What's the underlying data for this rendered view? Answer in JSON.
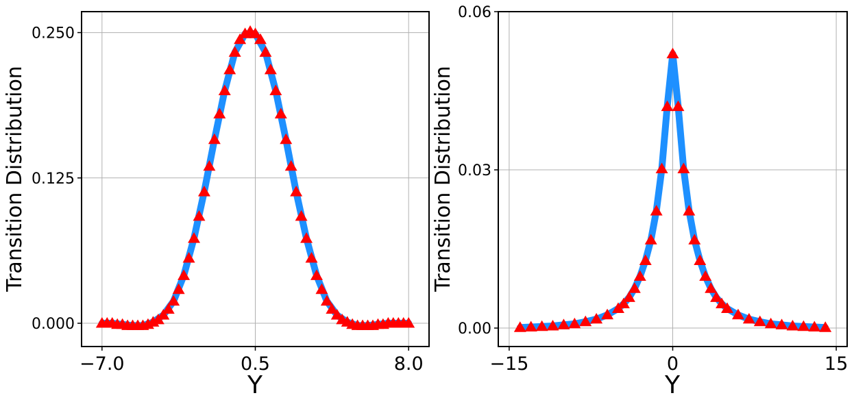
{
  "colors": {
    "curve": "#1E90FF",
    "markers": "#FF0000",
    "grid": "#b0b0b0",
    "axes": "#000000"
  },
  "chart_data": [
    {
      "type": "line",
      "xlabel": "Y",
      "ylabel": "Transition Distribution",
      "xlim": [
        -8.0,
        9.0
      ],
      "ylim": [
        -0.02,
        0.268
      ],
      "xticks": [
        -7.0,
        0.5,
        8.0
      ],
      "xtick_labels": [
        "−7.0",
        "0.5",
        "8.0"
      ],
      "yticks": [
        0.0,
        0.125,
        0.25
      ],
      "ytick_labels": [
        "0.000",
        "0.125",
        "0.250"
      ],
      "grid": true,
      "series": [
        {
          "style": "line",
          "x": [
            -7.0,
            -6.5,
            -6.0,
            -5.5,
            -5.0,
            -4.5,
            -4.0,
            -3.5,
            -3.0,
            -2.5,
            -2.0,
            -1.5,
            -1.0,
            -0.5,
            0.0,
            0.5,
            1.0,
            1.5,
            2.0,
            2.5,
            3.0,
            3.5,
            4.0,
            4.5,
            5.0,
            5.5,
            6.0,
            6.5,
            7.0,
            7.5,
            8.0
          ],
          "y": [
            0.0,
            0.0,
            -0.001,
            -0.002,
            -0.002,
            0.001,
            0.007,
            0.019,
            0.041,
            0.073,
            0.113,
            0.158,
            0.2,
            0.233,
            0.249,
            0.249,
            0.233,
            0.2,
            0.158,
            0.113,
            0.073,
            0.041,
            0.019,
            0.007,
            0.001,
            -0.002,
            -0.002,
            -0.001,
            0.0,
            0.0,
            0.0
          ]
        },
        {
          "style": "marker-triangle",
          "x": [
            -7.0,
            -6.75,
            -6.5,
            -6.25,
            -6.0,
            -5.75,
            -5.5,
            -5.25,
            -5.0,
            -4.75,
            -4.5,
            -4.25,
            -4.0,
            -3.75,
            -3.5,
            -3.25,
            -3.0,
            -2.75,
            -2.5,
            -2.25,
            -2.0,
            -1.75,
            -1.5,
            -1.25,
            -1.0,
            -0.75,
            -0.5,
            -0.25,
            0.0,
            0.25,
            0.5,
            0.75,
            1.0,
            1.25,
            1.5,
            1.75,
            2.0,
            2.25,
            2.5,
            2.75,
            3.0,
            3.25,
            3.5,
            3.75,
            4.0,
            4.25,
            4.5,
            4.75,
            5.0,
            5.25,
            5.5,
            5.75,
            6.0,
            6.25,
            6.5,
            6.75,
            7.0,
            7.25,
            7.5,
            7.75,
            8.0
          ],
          "y": [
            0.0,
            0.0,
            0.0,
            -0.001,
            -0.001,
            -0.002,
            -0.002,
            -0.002,
            -0.002,
            -0.001,
            0.001,
            0.003,
            0.007,
            0.012,
            0.019,
            0.029,
            0.041,
            0.056,
            0.073,
            0.092,
            0.113,
            0.135,
            0.158,
            0.18,
            0.2,
            0.218,
            0.233,
            0.244,
            0.249,
            0.251,
            0.249,
            0.244,
            0.233,
            0.218,
            0.2,
            0.18,
            0.158,
            0.135,
            0.113,
            0.092,
            0.073,
            0.056,
            0.041,
            0.029,
            0.019,
            0.012,
            0.007,
            0.003,
            0.001,
            -0.001,
            -0.002,
            -0.002,
            -0.002,
            -0.002,
            -0.001,
            -0.001,
            0.0,
            0.0,
            0.0,
            0.0,
            0.0
          ]
        }
      ]
    },
    {
      "type": "line",
      "xlabel": "Y",
      "ylabel": "Transition Distribution",
      "xlim": [
        -16.0,
        16.0
      ],
      "ylim": [
        -0.0035,
        0.06
      ],
      "xticks": [
        -15,
        0,
        15
      ],
      "xtick_labels": [
        "−15",
        "0",
        "15"
      ],
      "yticks": [
        0.0,
        0.03,
        0.06
      ],
      "ytick_labels": [
        "0.00",
        "0.03",
        "0.06"
      ],
      "grid": true,
      "series": [
        {
          "style": "line",
          "x": [
            -14,
            -13,
            -12,
            -11,
            -10,
            -9,
            -8,
            -7,
            -6,
            -5,
            -4.5,
            -4,
            -3.5,
            -3,
            -2.5,
            -2,
            -1.5,
            -1,
            -0.5,
            0,
            0.5,
            1,
            1.5,
            2,
            2.5,
            3,
            3.5,
            4,
            4.5,
            5,
            6,
            7,
            8,
            9,
            10,
            11,
            12,
            13,
            14
          ],
          "y": [
            0.0001,
            0.0002,
            0.0003,
            0.0004,
            0.0006,
            0.0008,
            0.0012,
            0.0017,
            0.0025,
            0.0037,
            0.0046,
            0.0058,
            0.0075,
            0.0098,
            0.0128,
            0.0167,
            0.0222,
            0.0302,
            0.042,
            0.052,
            0.042,
            0.0302,
            0.0222,
            0.0167,
            0.0128,
            0.0098,
            0.0075,
            0.0058,
            0.0046,
            0.0037,
            0.0025,
            0.0017,
            0.0012,
            0.0008,
            0.0006,
            0.0004,
            0.0003,
            0.0002,
            0.0001
          ]
        },
        {
          "style": "marker-triangle",
          "x": [
            -14,
            -13,
            -12,
            -11,
            -10,
            -9,
            -8,
            -7,
            -6,
            -5,
            -4.5,
            -4,
            -3.5,
            -3,
            -2.5,
            -2,
            -1.5,
            -1,
            -0.5,
            0,
            0.5,
            1,
            1.5,
            2,
            2.5,
            3,
            3.5,
            4,
            4.5,
            5,
            6,
            7,
            8,
            9,
            10,
            11,
            12,
            13,
            14
          ],
          "y": [
            0.0001,
            0.0002,
            0.0003,
            0.0004,
            0.0006,
            0.0008,
            0.0012,
            0.0017,
            0.0025,
            0.0037,
            0.0046,
            0.0058,
            0.0075,
            0.0098,
            0.0128,
            0.0167,
            0.0222,
            0.0302,
            0.042,
            0.052,
            0.042,
            0.0302,
            0.0222,
            0.0167,
            0.0128,
            0.0098,
            0.0075,
            0.0058,
            0.0046,
            0.0037,
            0.0025,
            0.0017,
            0.0012,
            0.0008,
            0.0006,
            0.0004,
            0.0003,
            0.0002,
            0.0001
          ]
        }
      ]
    }
  ]
}
